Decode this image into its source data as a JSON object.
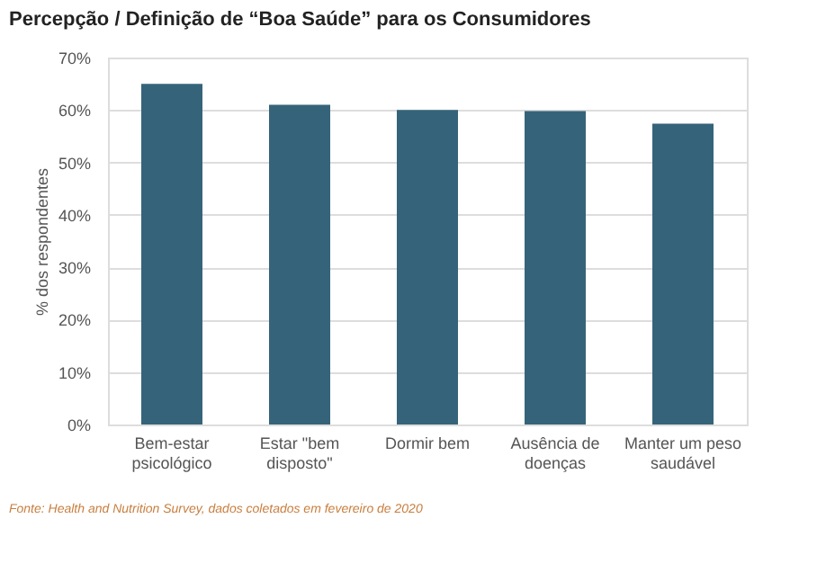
{
  "chart_data": {
    "type": "bar",
    "title": "Percepção / Definição de “Boa Saúde” para os Consumidores",
    "categories": [
      "Bem-estar\npsicológico",
      "Estar \"bem\ndisposto\"",
      "Dormir bem",
      "Ausência de\ndoenças",
      "Manter um peso\nsaudável"
    ],
    "values": [
      65,
      61,
      60,
      59.8,
      57.4
    ],
    "color": "#35647a",
    "ylabel": "% dos respondentes",
    "ylim": [
      0,
      70
    ],
    "yticks": [
      {
        "value": 0,
        "label": "0%"
      },
      {
        "value": 10,
        "label": "10%"
      },
      {
        "value": 20,
        "label": "20%"
      },
      {
        "value": 30,
        "label": "30%"
      },
      {
        "value": 40,
        "label": "40%"
      },
      {
        "value": 50,
        "label": "50%"
      },
      {
        "value": 60,
        "label": "60%"
      },
      {
        "value": 70,
        "label": "70%"
      }
    ],
    "grid": "y",
    "annotations": [
      "Fonte: Health and Nutrition Survey, dados coletados em fevereiro de 2020"
    ]
  }
}
